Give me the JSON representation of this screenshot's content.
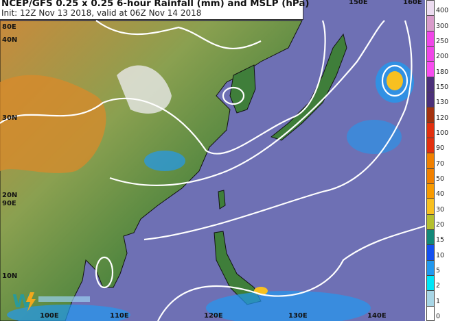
{
  "title": "NCEP/GFS 0.25 x 0.25 6-hour Rainfall (mm) and MSLP (hPa)",
  "subtitle": "Init: 12Z Nov 13 2018, valid at 06Z Nov 14 2018",
  "map_labels": {
    "lon": [
      "80E",
      "90E",
      "100E",
      "110E",
      "120E",
      "130E",
      "140E",
      "150E",
      "160E"
    ],
    "lat": [
      "40N",
      "30N",
      "20N",
      "10N"
    ]
  },
  "colorbar": {
    "levels": [
      "400",
      "300",
      "250",
      "200",
      "180",
      "150",
      "130",
      "120",
      "100",
      "90",
      "70",
      "50",
      "40",
      "30",
      "20",
      "15",
      "10",
      "5",
      "2",
      "1",
      "0"
    ],
    "colors": [
      "#ecdcf0",
      "#d99ccb",
      "#f046e8",
      "#f046e8",
      "#f84cf0",
      "#4b3079",
      "#4b3079",
      "#a3320f",
      "#e2300f",
      "#e2300f",
      "#f18000",
      "#f18000",
      "#f89a00",
      "#f8c020",
      "#b5bf2e",
      "#128878",
      "#1450f0",
      "#2298ef",
      "#00e6f8",
      "#a8d6e6",
      "#ffffff"
    ]
  },
  "colors": {
    "ocean": "#6e70b4",
    "land": "#4f8a3c",
    "highland": "#d98a2a",
    "isobar": "#ffffff"
  }
}
